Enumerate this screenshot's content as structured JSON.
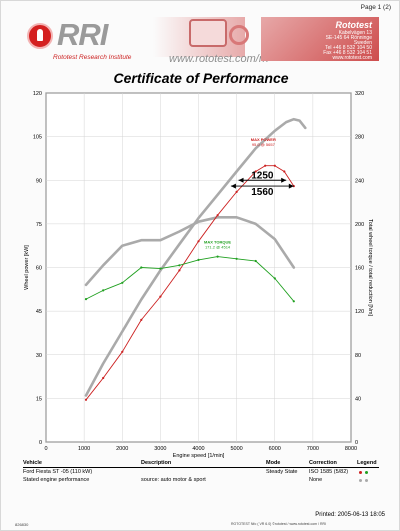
{
  "page": {
    "page_number": "Page 1 (2)"
  },
  "header": {
    "logo_text": "RRI",
    "logo_subtitle": "Rototest Research Institute",
    "website": "www.rototest.com/rri",
    "company": "Rototest",
    "address_lines": [
      "Kabelvägen 13",
      "SE-145 64 Rönninge",
      "Sweden",
      "Tel +46 8 532 104 50",
      "Fax +46 8 532 104 51",
      "www.rototest.com"
    ]
  },
  "title": "Certificate of Performance",
  "chart_data": {
    "type": "line",
    "xlabel": "Engine speed [1/min]",
    "ylabel": "Wheel power [kW]",
    "ylabel_right": "Total wheel torque / total reduction [Nm]",
    "xlim": [
      0,
      8000
    ],
    "ylim": [
      0,
      120
    ],
    "ylim_right": [
      0,
      320
    ],
    "x_ticks": [
      "0",
      "1000",
      "2000",
      "3000",
      "4000",
      "5000",
      "6000",
      "7000",
      "8000"
    ],
    "y_ticks": [
      "0",
      "15",
      "30",
      "45",
      "60",
      "75",
      "90",
      "105",
      "120"
    ],
    "y_ticks_right": [
      "0",
      "40",
      "80",
      "120",
      "160",
      "200",
      "240",
      "280",
      "320"
    ],
    "grid": true,
    "series": [
      {
        "kind": "reference-power",
        "axis": "left",
        "color": "#aaaaaa",
        "points": [
          [
            1050,
            16
          ],
          [
            1500,
            27
          ],
          [
            2000,
            38
          ],
          [
            2500,
            49
          ],
          [
            3000,
            59
          ],
          [
            3500,
            68
          ],
          [
            4000,
            77
          ],
          [
            4500,
            85
          ],
          [
            5000,
            93
          ],
          [
            5500,
            101
          ],
          [
            6000,
            107
          ],
          [
            6300,
            110
          ],
          [
            6500,
            111
          ],
          [
            6650,
            110.5
          ],
          [
            6800,
            108
          ]
        ]
      },
      {
        "kind": "reference-torque",
        "axis": "right",
        "color": "#aaaaaa",
        "points": [
          [
            1050,
            144
          ],
          [
            1500,
            162
          ],
          [
            2000,
            180
          ],
          [
            2500,
            185
          ],
          [
            3000,
            185
          ],
          [
            3500,
            193
          ],
          [
            4000,
            202
          ],
          [
            4500,
            206
          ],
          [
            5000,
            206
          ],
          [
            5500,
            200
          ],
          [
            6000,
            186
          ],
          [
            6500,
            160
          ]
        ]
      },
      {
        "kind": "measured-power",
        "axis": "left",
        "color": "#cc2020",
        "points": [
          [
            1050,
            14.5
          ],
          [
            1500,
            22
          ],
          [
            2000,
            31
          ],
          [
            2500,
            42
          ],
          [
            3000,
            50
          ],
          [
            3500,
            59
          ],
          [
            4000,
            69
          ],
          [
            4500,
            78
          ],
          [
            5000,
            86
          ],
          [
            5500,
            93
          ],
          [
            5750,
            95
          ],
          [
            6000,
            95
          ],
          [
            6250,
            93
          ],
          [
            6500,
            88
          ]
        ]
      },
      {
        "kind": "measured-torque",
        "axis": "right",
        "color": "#20a020",
        "points": [
          [
            1050,
            131
          ],
          [
            1500,
            139
          ],
          [
            2000,
            146
          ],
          [
            2500,
            160
          ],
          [
            3000,
            159
          ],
          [
            3500,
            162
          ],
          [
            4000,
            167
          ],
          [
            4500,
            170
          ],
          [
            5000,
            168
          ],
          [
            5500,
            166
          ],
          [
            6000,
            150
          ],
          [
            6500,
            129
          ]
        ]
      }
    ],
    "annotations": [
      {
        "label": "MAX POWER",
        "value": "95.0 @ 5657",
        "color": "#cc2020"
      },
      {
        "label": "MAX TORQUE",
        "value": "171.2 @ 4514",
        "color": "#20a020"
      }
    ],
    "markers": [
      {
        "label": "1250",
        "x_start": 5050,
        "x_end": 6300,
        "y": 90
      },
      {
        "label": "1560",
        "x_start": 4850,
        "x_end": 6500,
        "y": 88
      }
    ]
  },
  "footer": {
    "headers": {
      "vehicle": "Vehicle",
      "description": "Description",
      "mode": "Mode",
      "correction": "Correction",
      "legend": "Legend"
    },
    "rows": [
      {
        "vehicle": "Ford Fiesta ST -05 (110 kW)",
        "description": "",
        "mode": "Steady State",
        "correction": "ISO 1585 (5/82)"
      },
      {
        "vehicle": "Stated engine performance",
        "description": "source: auto motor & sport",
        "mode": "",
        "correction": "None"
      }
    ],
    "legend_colors": [
      "#cc2020",
      "#20a020",
      "#aaaaaa",
      "#aaaaaa"
    ]
  },
  "bottom": {
    "id": "826830",
    "mid_text": "ROTOTEST Nfo ( VR 6.0) ©rototest / www.rototest.com / RRI",
    "printed": "Printed: 2005-06-13 18:05"
  }
}
